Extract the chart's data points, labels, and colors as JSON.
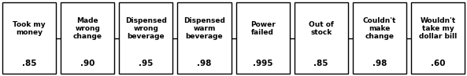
{
  "boxes": [
    {
      "label": "Took my\nmoney",
      "value": ".85"
    },
    {
      "label": "Made\nwrong\nchange",
      "value": ".90"
    },
    {
      "label": "Dispensed\nwrong\nbeverage",
      "value": ".95"
    },
    {
      "label": "Dispensed\nwarm\nbeverage",
      "value": ".98"
    },
    {
      "label": "Power\nfailed",
      "value": ".995"
    },
    {
      "label": "Out of\nstock",
      "value": ".85"
    },
    {
      "label": "Couldn't\nmake\nchange",
      "value": ".98"
    },
    {
      "label": "Wouldn't\ntake my\ndollar bill",
      "value": ".60"
    }
  ],
  "box_facecolor": "#ffffff",
  "box_edgecolor": "#000000",
  "line_color": "#000000",
  "text_color": "#000000",
  "background_color": "#ffffff",
  "label_fontsize": 6.5,
  "value_fontsize": 7.5,
  "fig_width": 5.93,
  "fig_height": 0.97
}
